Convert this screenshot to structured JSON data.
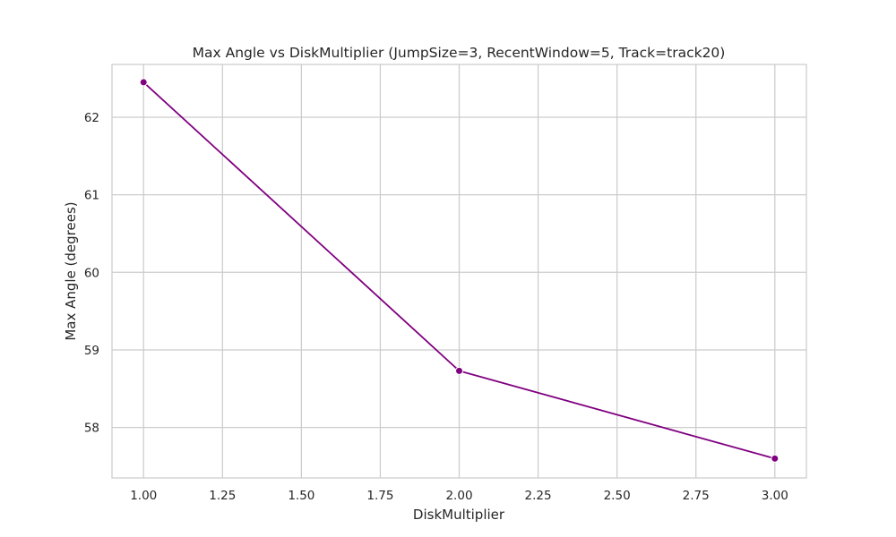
{
  "chart_data": {
    "type": "line",
    "title": "Max Angle vs DiskMultiplier (JumpSize=3, RecentWindow=5, Track=track20)",
    "xlabel": "DiskMultiplier",
    "ylabel": "Max Angle (degrees)",
    "xlim": [
      0.9,
      3.1
    ],
    "ylim": [
      57.35,
      62.68
    ],
    "xticks": [
      1.0,
      1.25,
      1.5,
      1.75,
      2.0,
      2.25,
      2.5,
      2.75,
      3.0
    ],
    "xtick_labels": [
      "1.00",
      "1.25",
      "1.50",
      "1.75",
      "2.00",
      "2.25",
      "2.50",
      "2.75",
      "3.00"
    ],
    "yticks": [
      58,
      59,
      60,
      61,
      62
    ],
    "ytick_labels": [
      "58",
      "59",
      "60",
      "61",
      "62"
    ],
    "grid": true,
    "legend": "none",
    "series": [
      {
        "color": "#800080",
        "marker": "circle",
        "x": [
          1.0,
          2.0,
          3.0
        ],
        "y": [
          62.45,
          58.73,
          57.6
        ]
      }
    ],
    "colors": {
      "line": "#800080",
      "grid": "#cccccc",
      "axes_edge": "#cccccc",
      "text": "#262626"
    }
  }
}
